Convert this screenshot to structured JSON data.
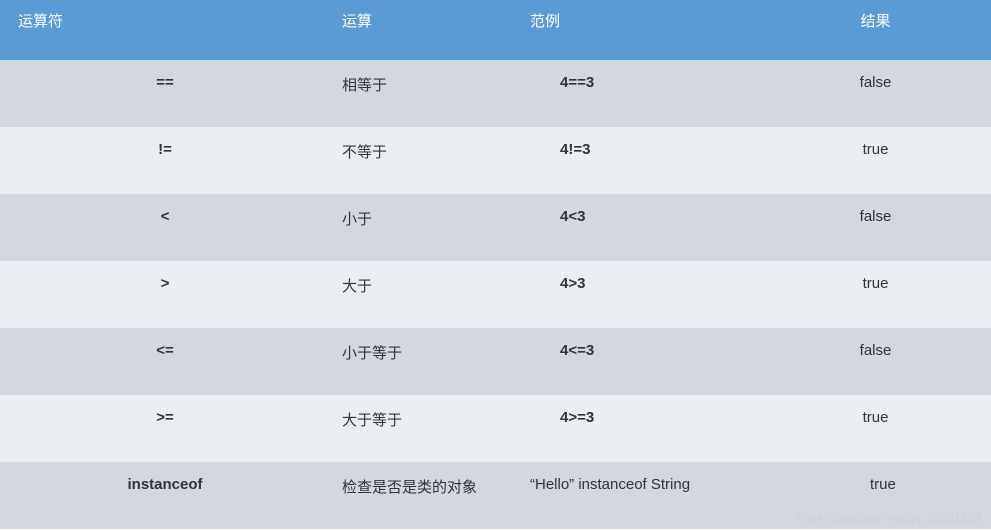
{
  "header": {
    "operator": "运算符",
    "operation": "运算",
    "example": "范例",
    "result": "结果"
  },
  "rows": [
    {
      "operator": "==",
      "operation": "相等于",
      "example": "4==3",
      "result": "false"
    },
    {
      "operator": "!=",
      "operation": "不等于",
      "example": "4!=3",
      "result": "true"
    },
    {
      "operator": "<",
      "operation": "小于",
      "example": "4<3",
      "result": "false"
    },
    {
      "operator": ">",
      "operation": "大于",
      "example": "4>3",
      "result": "true"
    },
    {
      "operator": "<=",
      "operation": "小于等于",
      "example": "4<=3",
      "result": "false"
    },
    {
      "operator": ">=",
      "operation": "大于等于",
      "example": "4>=3",
      "result": "true"
    },
    {
      "operator": "instanceof",
      "operation": "检查是否是类的对象",
      "example": "“Hello”  instanceof  String",
      "result": "true"
    }
  ],
  "colors": {
    "header_bg": "#5b9bd5",
    "header_text": "#ffffff",
    "row_even_bg": "#d2d7e0",
    "row_odd_bg": "#eaedf2",
    "text": "#333333"
  },
  "watermark": "https://blog.csdn.net/qq_56501283"
}
